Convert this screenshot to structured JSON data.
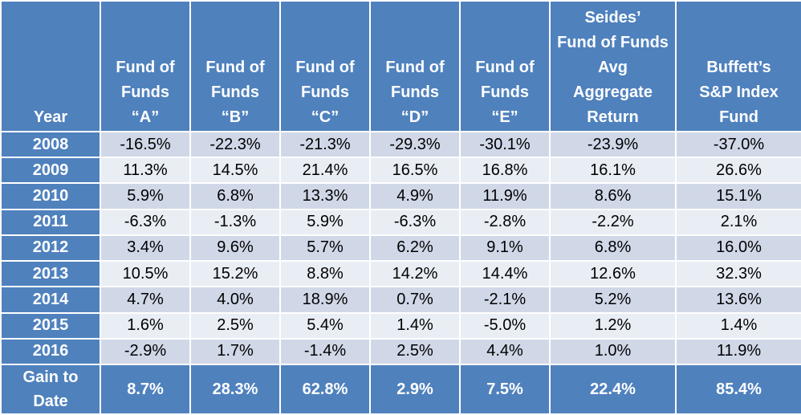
{
  "table": {
    "headers": [
      {
        "lines": [
          "Year"
        ]
      },
      {
        "lines": [
          "Fund of",
          "Funds",
          "“A”"
        ]
      },
      {
        "lines": [
          "Fund of",
          "Funds",
          "“B”"
        ]
      },
      {
        "lines": [
          "Fund of",
          "Funds",
          "“C”"
        ]
      },
      {
        "lines": [
          "Fund of",
          "Funds",
          "“D”"
        ]
      },
      {
        "lines": [
          "Fund of",
          "Funds",
          "“E”"
        ]
      },
      {
        "lines": [
          "Seides’",
          "Fund of Funds",
          "Avg",
          "Aggregate",
          "Return"
        ]
      },
      {
        "lines": [
          "Buffett’s",
          "S&P Index",
          "Fund"
        ]
      }
    ],
    "rows": [
      {
        "year": "2008",
        "values": [
          "-16.5%",
          "-22.3%",
          "-21.3%",
          "-29.3%",
          "-30.1%",
          "-23.9%",
          "-37.0%"
        ]
      },
      {
        "year": "2009",
        "values": [
          "11.3%",
          "14.5%",
          "21.4%",
          "16.5%",
          "16.8%",
          "16.1%",
          "26.6%"
        ]
      },
      {
        "year": "2010",
        "values": [
          "5.9%",
          "6.8%",
          "13.3%",
          "4.9%",
          "11.9%",
          "8.6%",
          "15.1%"
        ]
      },
      {
        "year": "2011",
        "values": [
          "-6.3%",
          "-1.3%",
          "5.9%",
          "-6.3%",
          "-2.8%",
          "-2.2%",
          "2.1%"
        ]
      },
      {
        "year": "2012",
        "values": [
          "3.4%",
          "9.6%",
          "5.7%",
          "6.2%",
          "9.1%",
          "6.8%",
          "16.0%"
        ]
      },
      {
        "year": "2013",
        "values": [
          "10.5%",
          "15.2%",
          "8.8%",
          "14.2%",
          "14.4%",
          "12.6%",
          "32.3%"
        ]
      },
      {
        "year": "2014",
        "values": [
          "4.7%",
          "4.0%",
          "18.9%",
          "0.7%",
          "-2.1%",
          "5.2%",
          "13.6%"
        ]
      },
      {
        "year": "2015",
        "values": [
          "1.6%",
          "2.5%",
          "5.4%",
          "1.4%",
          "-5.0%",
          "1.2%",
          "1.4%"
        ]
      },
      {
        "year": "2016",
        "values": [
          "-2.9%",
          "1.7%",
          "-1.4%",
          "2.5%",
          "4.4%",
          "1.0%",
          "11.9%"
        ]
      }
    ],
    "total": {
      "label_lines": [
        "Gain to",
        "Date"
      ],
      "values": [
        "8.7%",
        "28.3%",
        "62.8%",
        "2.9%",
        "7.5%",
        "22.4%",
        "85.4%"
      ]
    }
  },
  "colors": {
    "header_bg": "#4f81bd",
    "row_odd_bg": "#d0d8e8",
    "row_even_bg": "#e9edf4",
    "header_text": "#ffffff"
  }
}
